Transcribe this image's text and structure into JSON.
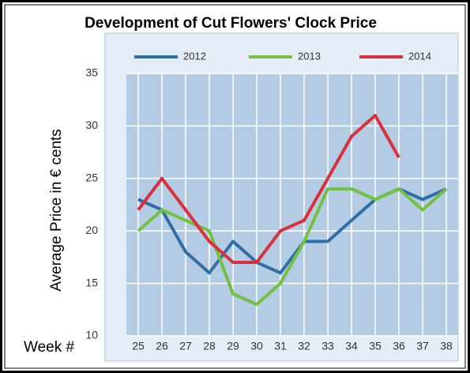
{
  "chart_data": {
    "type": "line",
    "title": "Development of Cut Flowers' Clock Price",
    "y_label": "Average Price in € cents",
    "x_label": "Week #",
    "categories": [
      "25",
      "26",
      "27",
      "28",
      "29",
      "30",
      "31",
      "32",
      "33",
      "34",
      "35",
      "36",
      "37",
      "38"
    ],
    "series": [
      {
        "name": "2012",
        "color": "#2f6fa6",
        "values": [
          23,
          22,
          18,
          16,
          19,
          17,
          16,
          19,
          19,
          21,
          23,
          24,
          23,
          24
        ]
      },
      {
        "name": "2013",
        "color": "#74c043",
        "values": [
          20,
          22,
          21,
          20,
          14,
          13,
          15,
          19,
          24,
          24,
          23,
          24,
          22,
          24
        ]
      },
      {
        "name": "2014",
        "color": "#d9303c",
        "values": [
          22,
          25,
          22,
          19,
          17,
          17,
          20,
          21,
          25,
          29,
          31,
          27,
          null,
          null
        ]
      }
    ],
    "ylim": [
      10,
      35
    ],
    "yticks": [
      10,
      15,
      20,
      25,
      30,
      35
    ],
    "grid": true
  }
}
